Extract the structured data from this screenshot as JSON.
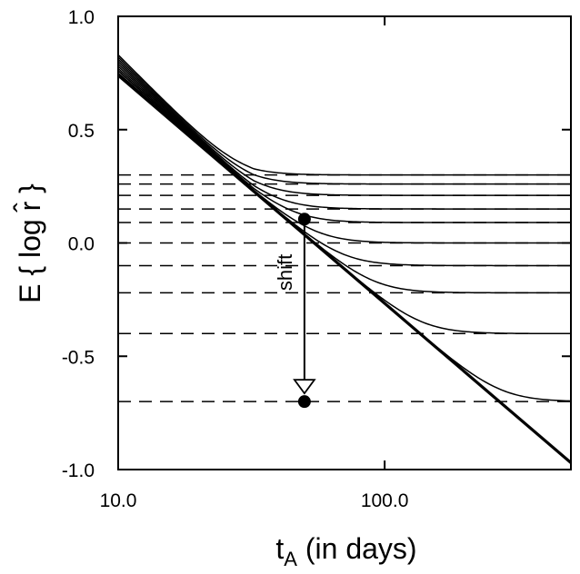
{
  "chart_data": {
    "type": "line",
    "xlabel": "t",
    "xlabel_sub": "A",
    "xlabel_suffix": " (in days)",
    "ylabel": "E { log r̂ }",
    "x_scale": "log",
    "xlim": [
      10,
      500
    ],
    "ylim": [
      -1.0,
      1.0
    ],
    "x_ticks": [
      10,
      100
    ],
    "x_tick_labels": [
      "10.0",
      "100.0"
    ],
    "y_ticks": [
      -1.0,
      -0.5,
      0.0,
      0.5,
      1.0
    ],
    "y_tick_labels": [
      "-1.0",
      "-0.5",
      "0.0",
      "0.5",
      "1.0"
    ],
    "grid": false,
    "asymptote_levels": [
      0.3,
      0.26,
      0.21,
      0.15,
      0.09,
      0.0,
      -0.1,
      -0.22,
      -0.4,
      -0.7
    ],
    "reference_line": {
      "x": [
        10,
        500
      ],
      "y": [
        0.74,
        -0.97
      ]
    },
    "curves": [
      {
        "asymptote": 0.3,
        "y_at_10": 0.83
      },
      {
        "asymptote": 0.26,
        "y_at_10": 0.82
      },
      {
        "asymptote": 0.21,
        "y_at_10": 0.81
      },
      {
        "asymptote": 0.15,
        "y_at_10": 0.8
      },
      {
        "asymptote": 0.09,
        "y_at_10": 0.79
      },
      {
        "asymptote": 0.0,
        "y_at_10": 0.78
      },
      {
        "asymptote": -0.1,
        "y_at_10": 0.77
      },
      {
        "asymptote": -0.22,
        "y_at_10": 0.76
      },
      {
        "asymptote": -0.4,
        "y_at_10": 0.76
      },
      {
        "asymptote": -0.7,
        "y_at_10": 0.75
      }
    ],
    "shift_annotation": {
      "label": "shift",
      "x": 50,
      "y_from": 0.105,
      "y_to": -0.7
    }
  }
}
